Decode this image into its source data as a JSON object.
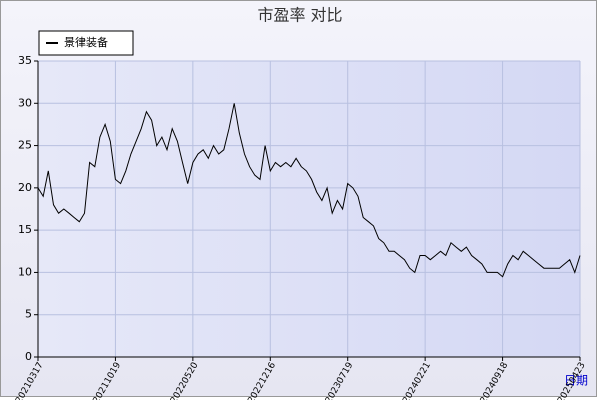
{
  "chart_data": {
    "type": "line",
    "title": "市盈率  对比",
    "x_label": "日期",
    "categories": [
      "20210317",
      null,
      null,
      null,
      null,
      null,
      null,
      null,
      null,
      null,
      null,
      null,
      null,
      null,
      null,
      "20211019",
      null,
      null,
      null,
      null,
      null,
      null,
      null,
      null,
      null,
      null,
      null,
      null,
      null,
      null,
      "20220520",
      null,
      null,
      null,
      null,
      null,
      null,
      null,
      null,
      null,
      null,
      null,
      null,
      null,
      null,
      "20221216",
      null,
      null,
      null,
      null,
      null,
      null,
      null,
      null,
      null,
      null,
      null,
      null,
      null,
      null,
      "20230719",
      null,
      null,
      null,
      null,
      null,
      null,
      null,
      null,
      null,
      null,
      null,
      null,
      null,
      null,
      "20240221",
      null,
      null,
      null,
      null,
      null,
      null,
      null,
      null,
      null,
      null,
      null,
      null,
      null,
      null,
      "20240918",
      null,
      null,
      null,
      null,
      null,
      null,
      null,
      null,
      null,
      null,
      null,
      null,
      null,
      null,
      "20250423"
    ],
    "series": [
      {
        "name": "景律装备",
        "color": "#000000",
        "values": [
          20,
          19,
          22,
          18,
          17,
          17.5,
          17,
          16.5,
          16,
          17,
          23,
          22.5,
          26,
          27.5,
          25.5,
          21,
          20.5,
          22,
          24,
          25.5,
          27,
          29,
          28,
          25,
          26,
          24.5,
          27,
          25.5,
          23,
          20.5,
          23,
          24,
          24.5,
          23.5,
          25,
          24,
          24.5,
          27,
          30,
          26.5,
          24,
          22.5,
          21.5,
          21,
          25,
          22,
          23,
          22.5,
          23,
          22.5,
          23.5,
          22.5,
          22,
          21,
          19.5,
          18.5,
          20,
          17,
          18.5,
          17.5,
          20.5,
          20,
          19,
          16.5,
          16,
          15.5,
          14,
          13.5,
          12.5,
          12.5,
          12,
          11.5,
          10.5,
          10,
          12,
          12,
          11.5,
          12,
          12.5,
          12,
          13.5,
          13,
          12.5,
          13,
          12,
          11.5,
          11,
          10,
          10,
          10,
          9.5,
          11,
          12,
          11.5,
          12.5,
          12,
          11.5,
          11,
          10.5,
          10.5,
          10.5,
          10.5,
          11,
          11.5,
          10,
          12
        ]
      }
    ],
    "ylim": [
      0,
      35
    ],
    "yticks": [
      0,
      5,
      10,
      15,
      20,
      25,
      30,
      35
    ],
    "grid": true,
    "legend": "top-left"
  }
}
